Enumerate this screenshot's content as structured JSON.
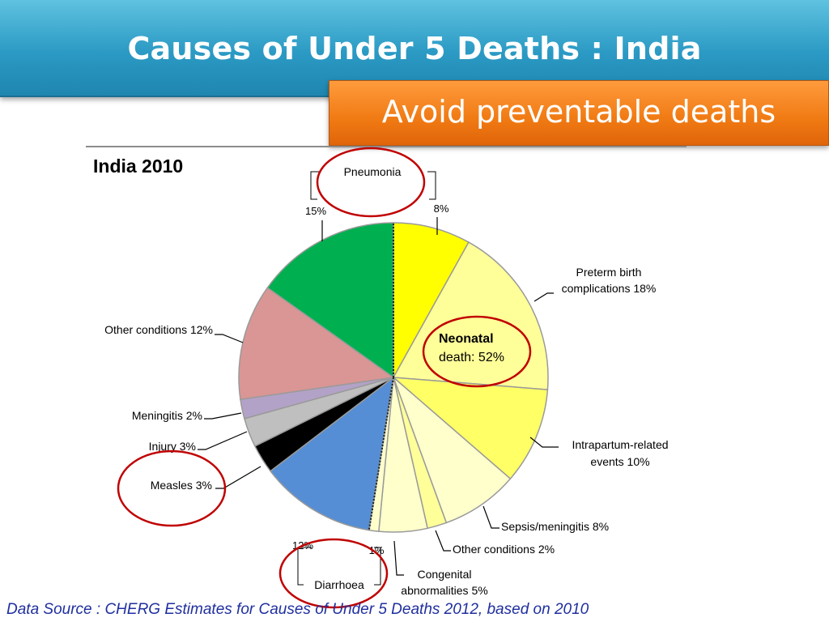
{
  "slide": {
    "title": "Causes of Under 5 Deaths : India",
    "subtitle": "Avoid preventable deaths",
    "source": "Data Source : CHERG Estimates for Causes of Under 5 Deaths 2012,  based on 2010"
  },
  "chart_data": {
    "type": "pie",
    "title": "India 2010",
    "slices": [
      {
        "label": "Pneumonia",
        "value": 8,
        "value_label": "8%",
        "color": "#ffff00",
        "group": "neonatal"
      },
      {
        "label": "Preterm birth complications",
        "value": 18,
        "color": "#ffff99",
        "group": "neonatal"
      },
      {
        "label": "Intrapartum-related events",
        "value": 10,
        "color": "#ffff66",
        "group": "neonatal"
      },
      {
        "label": "Sepsis/meningitis",
        "value": 8,
        "color": "#ffffcc",
        "group": "neonatal"
      },
      {
        "label": "Other conditions",
        "value": 2,
        "color": "#ffff99",
        "group": "neonatal"
      },
      {
        "label": "Congenital abnormalities",
        "value": 5,
        "color": "#ffffcc",
        "group": "neonatal"
      },
      {
        "label": "Diarrhoea",
        "value": 1,
        "value_label": "1%",
        "color": "#ffffcc",
        "group": "neonatal"
      },
      {
        "label": "Diarrhoea",
        "value": 12,
        "value_label": "12%",
        "color": "#558ed5",
        "group": "postneonatal"
      },
      {
        "label": "Measles",
        "value": 3,
        "color": "#000000",
        "group": "postneonatal"
      },
      {
        "label": "Injury",
        "value": 3,
        "color": "#bfbfbf",
        "group": "postneonatal"
      },
      {
        "label": "Meningitis",
        "value": 2,
        "color": "#b3a2c7",
        "group": "postneonatal"
      },
      {
        "label": "Other conditions",
        "value": 12,
        "color": "#d99694",
        "group": "postneonatal"
      },
      {
        "label": "Pneumonia",
        "value": 15,
        "value_label": "15%",
        "color": "#00b050",
        "group": "postneonatal"
      }
    ],
    "slice_labels": {
      "pneumonia_name": "Pneumonia",
      "pneumonia_neonatal_pct": "8%",
      "pneumonia_post_pct": "15%",
      "preterm_1": "Preterm birth",
      "preterm_2": "complications 18%",
      "intrapartum_1": "Intrapartum-related",
      "intrapartum_2": "events 10%",
      "sepsis": "Sepsis/meningitis 8%",
      "other_neonatal": "Other conditions 2%",
      "congenital_1": "Congenital",
      "congenital_2": "abnormalities 5%",
      "diarrhoea_name": "Diarrhoea",
      "diarrhoea_post_pct": "12%",
      "diarrhoea_neonatal_pct": "1%",
      "measles": "Measles 3%",
      "injury": "Injury 3%",
      "meningitis": "Meningitis 2%",
      "other_post": "Other conditions 12%"
    },
    "neonatal_callout": {
      "line1": "Neonatal",
      "line2": "death: 52%"
    },
    "highlight_color": "#c00000"
  }
}
